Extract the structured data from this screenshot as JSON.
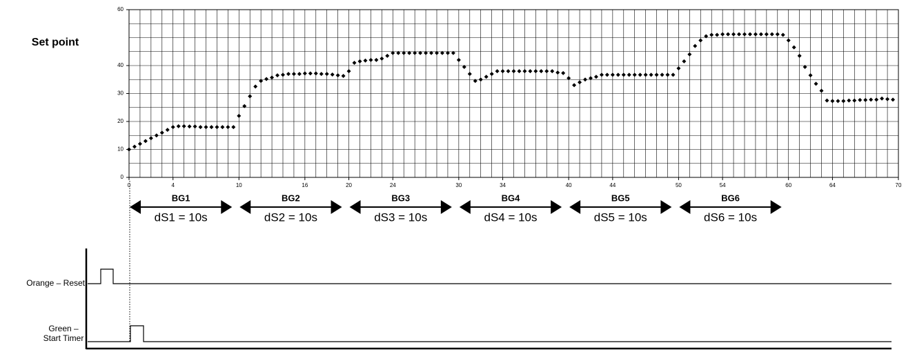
{
  "chart_data": {
    "type": "scatter",
    "ylabel": "Set point",
    "color": "#000000",
    "grid": true,
    "xlim": [
      0,
      70
    ],
    "ylim": [
      0,
      60
    ],
    "xticks": [
      0,
      4,
      10,
      16,
      20,
      24,
      30,
      34,
      40,
      44,
      50,
      54,
      60,
      64,
      70
    ],
    "yticks": [
      0,
      10,
      20,
      30,
      40,
      60
    ],
    "x": [
      0,
      0.5,
      1,
      1.5,
      2,
      2.5,
      3,
      3.5,
      4,
      4.5,
      5,
      5.5,
      6,
      6.5,
      7,
      7.5,
      8,
      8.5,
      9,
      9.5,
      10,
      10.5,
      11,
      11.5,
      12,
      12.5,
      13,
      13.5,
      14,
      14.5,
      15,
      15.5,
      16,
      16.5,
      17,
      17.5,
      18,
      18.5,
      19,
      19.5,
      20,
      20.5,
      21,
      21.5,
      22,
      22.5,
      23,
      23.5,
      24,
      24.5,
      25,
      25.5,
      26,
      26.5,
      27,
      27.5,
      28,
      28.5,
      29,
      29.5,
      30,
      30.5,
      31,
      31.5,
      32,
      32.5,
      33,
      33.5,
      34,
      34.5,
      35,
      35.5,
      36,
      36.5,
      37,
      37.5,
      38,
      38.5,
      39,
      39.5,
      40,
      40.5,
      41,
      41.5,
      42,
      42.5,
      43,
      43.5,
      44,
      44.5,
      45,
      45.5,
      46,
      46.5,
      47,
      47.5,
      48,
      48.5,
      49,
      49.5,
      50,
      50.5,
      51,
      51.5,
      52,
      52.5,
      53,
      53.5,
      54,
      54.5,
      55,
      55.5,
      56,
      56.5,
      57,
      57.5,
      58,
      58.5,
      59,
      59.5,
      60,
      60.5,
      61,
      61.5,
      62,
      62.5,
      63,
      63.5,
      64,
      64.5,
      65,
      65.5,
      66,
      66.5,
      67,
      67.5,
      68,
      68.5,
      69,
      69.5
    ],
    "values": [
      10,
      11,
      12,
      13,
      14,
      15,
      16,
      17,
      18,
      18.3,
      18.3,
      18.2,
      18.2,
      18,
      18,
      18,
      18,
      18,
      18,
      18,
      22,
      25.5,
      29,
      32.5,
      34.5,
      35.2,
      35.7,
      36.5,
      36.7,
      37,
      37,
      37,
      37.2,
      37.2,
      37.2,
      37,
      37,
      36.8,
      36.5,
      36.3,
      38,
      41,
      41.5,
      41.8,
      42,
      42,
      42.5,
      43.5,
      44.5,
      44.5,
      44.5,
      44.5,
      44.5,
      44.5,
      44.5,
      44.5,
      44.5,
      44.5,
      44.5,
      44.5,
      42,
      39.5,
      37,
      34.5,
      35,
      36,
      37,
      38,
      38,
      38,
      38,
      38,
      38,
      38,
      38,
      38,
      38,
      38,
      37.5,
      37.3,
      35.5,
      33,
      34,
      35,
      35.5,
      36,
      36.7,
      36.7,
      36.7,
      36.7,
      36.7,
      36.7,
      36.7,
      36.7,
      36.7,
      36.7,
      36.7,
      36.7,
      36.7,
      36.7,
      39,
      41.5,
      44,
      47,
      49,
      50.5,
      51,
      51,
      51.2,
      51.2,
      51.2,
      51.2,
      51.2,
      51.2,
      51.2,
      51.2,
      51.2,
      51.2,
      51.2,
      51,
      49,
      46.5,
      43.5,
      39.5,
      36.5,
      33.5,
      31,
      27.5,
      27.3,
      27.3,
      27.3,
      27.5,
      27.5,
      27.7,
      27.7,
      27.8,
      27.8,
      28.2,
      28,
      27.8
    ],
    "segments": [
      {
        "name": "BG1",
        "label": "dS1 = 10s"
      },
      {
        "name": "BG2",
        "label": "dS2 = 10s"
      },
      {
        "name": "BG3",
        "label": "dS3 = 10s"
      },
      {
        "name": "BG4",
        "label": "dS4 = 10s"
      },
      {
        "name": "BG5",
        "label": "dS5 = 10s"
      },
      {
        "name": "BG6",
        "label": "dS6 = 10s"
      }
    ],
    "signals": [
      {
        "lines": [
          "Orange – Reset"
        ]
      },
      {
        "lines": [
          "Green –",
          "Start Timer"
        ]
      }
    ]
  }
}
